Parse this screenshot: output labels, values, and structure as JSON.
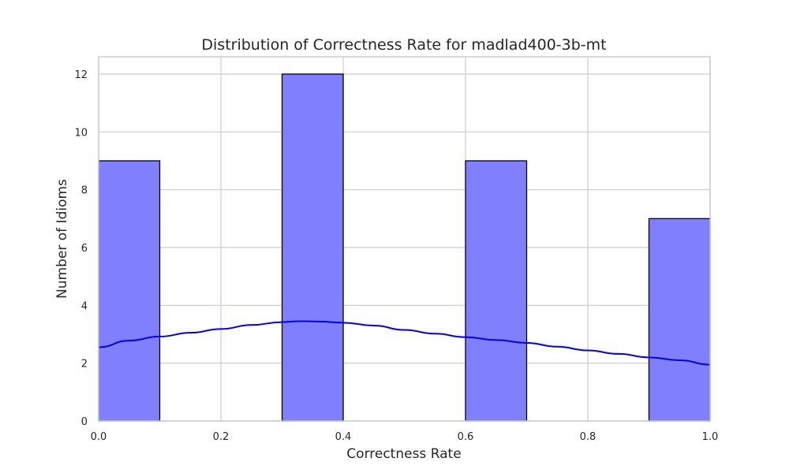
{
  "chart_data": {
    "type": "bar",
    "title": "Distribution of Correctness Rate for madlad400-3b-mt",
    "xlabel": "Correctness Rate",
    "ylabel": "Number of Idioms",
    "xlim": [
      0.0,
      1.0
    ],
    "ylim": [
      0,
      12.6
    ],
    "x_ticks": [
      "0.0",
      "0.2",
      "0.4",
      "0.6",
      "0.8",
      "1.0"
    ],
    "y_ticks": [
      "0",
      "2",
      "4",
      "6",
      "8",
      "10",
      "12"
    ],
    "bins": [
      {
        "start": 0.0,
        "end": 0.1,
        "count": 9
      },
      {
        "start": 0.1,
        "end": 0.2,
        "count": 0
      },
      {
        "start": 0.2,
        "end": 0.3,
        "count": 0
      },
      {
        "start": 0.3,
        "end": 0.4,
        "count": 12
      },
      {
        "start": 0.4,
        "end": 0.5,
        "count": 0
      },
      {
        "start": 0.5,
        "end": 0.6,
        "count": 0
      },
      {
        "start": 0.6,
        "end": 0.7,
        "count": 9
      },
      {
        "start": 0.7,
        "end": 0.8,
        "count": 0
      },
      {
        "start": 0.8,
        "end": 0.9,
        "count": 0
      },
      {
        "start": 0.9,
        "end": 1.0,
        "count": 7
      }
    ],
    "kde": [
      [
        0.0,
        2.55
      ],
      [
        0.05,
        2.78
      ],
      [
        0.1,
        2.92
      ],
      [
        0.15,
        3.05
      ],
      [
        0.2,
        3.18
      ],
      [
        0.25,
        3.32
      ],
      [
        0.3,
        3.42
      ],
      [
        0.33,
        3.45
      ],
      [
        0.36,
        3.44
      ],
      [
        0.4,
        3.4
      ],
      [
        0.45,
        3.3
      ],
      [
        0.5,
        3.15
      ],
      [
        0.55,
        3.02
      ],
      [
        0.6,
        2.9
      ],
      [
        0.65,
        2.8
      ],
      [
        0.7,
        2.7
      ],
      [
        0.75,
        2.57
      ],
      [
        0.8,
        2.44
      ],
      [
        0.85,
        2.32
      ],
      [
        0.9,
        2.2
      ],
      [
        0.95,
        2.1
      ],
      [
        1.0,
        1.95
      ]
    ],
    "grid": true,
    "colors": {
      "bar_fill": "#8080ff",
      "bar_edge": "#000000",
      "kde_line": "#0000ee",
      "grid": "#cccccc",
      "frame": "#cccccc"
    }
  }
}
